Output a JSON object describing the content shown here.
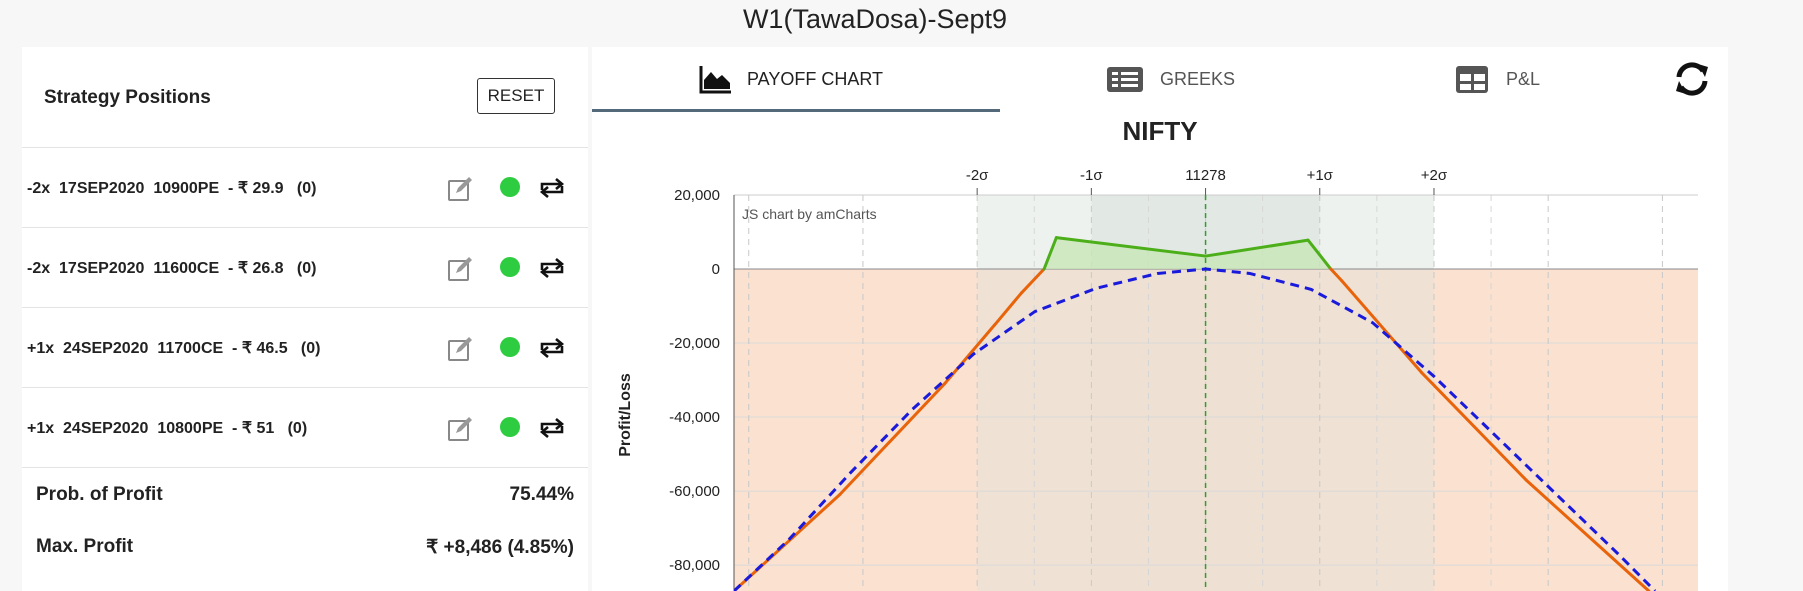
{
  "page_title": "W1(TawaDosa)-Sept9",
  "left": {
    "title": "Strategy Positions",
    "reset_label": "RESET",
    "positions": [
      {
        "text": "-2x  17SEP2020  10900PE  - ₹ 29.9   (0)"
      },
      {
        "text": "-2x  17SEP2020  11600CE  - ₹ 26.8   (0)"
      },
      {
        "text": "+1x  24SEP2020  11700CE  - ₹ 46.5   (0)"
      },
      {
        "text": "+1x  24SEP2020  10800PE  - ₹ 51   (0)"
      }
    ],
    "stats": [
      {
        "label": "Prob. of Profit",
        "value": "75.44%"
      },
      {
        "label": "Max. Profit",
        "value": "₹ +8,486 (4.85%)"
      }
    ]
  },
  "tabs": [
    {
      "label": "PAYOFF CHART",
      "icon": "area-chart-icon",
      "active": true
    },
    {
      "label": "GREEKS",
      "icon": "list-icon",
      "active": false
    },
    {
      "label": "P&L",
      "icon": "table-icon",
      "active": false
    }
  ],
  "chart_data": {
    "type": "line",
    "title": "NIFTY",
    "ylabel": "Profit/Loss",
    "credit": "JS chart by amCharts",
    "y_ticks": [
      20000,
      0,
      -20000,
      -40000,
      -60000,
      -80000
    ],
    "y_tick_labels": [
      "20,000",
      "0",
      "-20,000",
      "-40,000",
      "-60,000",
      "-80,000"
    ],
    "top_axis_labels": [
      "-2σ",
      "-1σ",
      "11278",
      "+1σ",
      "+2σ"
    ],
    "spot": 11278,
    "sigma": 186,
    "xlim": [
      10510,
      12080
    ],
    "ylim": [
      -87000,
      20000
    ],
    "colors": {
      "expiry_line": "#e8630a",
      "profit_line": "#4caf1a",
      "target_line": "#1a1adc",
      "loss_fill": "#f9dcc8",
      "profit_fill": "#c8e6b8",
      "spot_line": "#2e9e2e"
    },
    "series": [
      {
        "values": [
          [
            10510,
            -87000
          ],
          [
            10682,
            -61000
          ],
          [
            10853,
            -31000
          ],
          [
            10935,
            -15000
          ],
          [
            10978,
            -6500
          ],
          [
            11015,
            0
          ],
          [
            11035,
            8486
          ],
          [
            11278,
            3500
          ],
          [
            11445,
            7800
          ],
          [
            11482,
            0
          ],
          [
            11500,
            -3200
          ],
          [
            11630,
            -28000
          ],
          [
            11800,
            -57000
          ],
          [
            12000,
            -87000
          ]
        ]
      },
      {
        "values": [
          [
            10510,
            -87000
          ],
          [
            10600,
            -73000
          ],
          [
            10700,
            -55000
          ],
          [
            10800,
            -38000
          ],
          [
            10900,
            -23000
          ],
          [
            11000,
            -11500
          ],
          [
            11100,
            -5200
          ],
          [
            11200,
            -1200
          ],
          [
            11278,
            0
          ],
          [
            11350,
            -1200
          ],
          [
            11450,
            -5500
          ],
          [
            11550,
            -14500
          ],
          [
            11650,
            -29000
          ],
          [
            11750,
            -45000
          ],
          [
            11850,
            -61000
          ],
          [
            11950,
            -77000
          ],
          [
            12010,
            -87000
          ]
        ]
      }
    ]
  }
}
